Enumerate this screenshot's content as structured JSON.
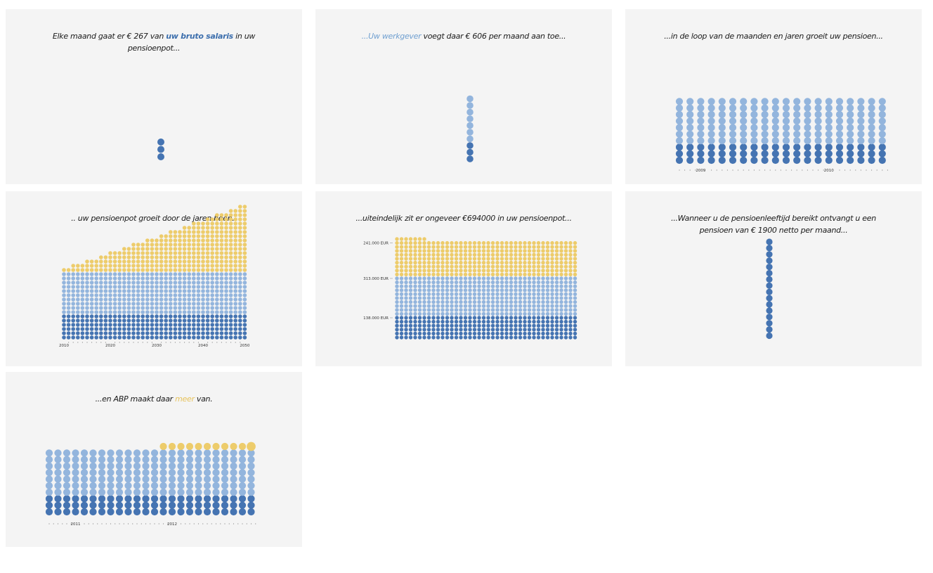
{
  "colors": {
    "employee": "#4574b2",
    "employer": "#93b5dd",
    "returns": "#edcc6b",
    "panel_bg": "#f4f4f4",
    "text": "#1a1a1a"
  },
  "panels": [
    {
      "id": 1,
      "caption_parts": [
        "Elke maand gaat er € 267 van ",
        "uw bruto salaris",
        " in uw pensioenpot..."
      ]
    },
    {
      "id": 2,
      "caption_parts": [
        "...Uw werkgever",
        " voegt daar € 606 per maand aan toe..."
      ]
    },
    {
      "id": 3,
      "caption_parts": [
        "...in de loop van de maanden en jaren groeit uw pensioen..."
      ]
    },
    {
      "id": 4,
      "caption_parts": [
        ".. uw pensioenpot groeit door de jaren heen.."
      ]
    },
    {
      "id": 5,
      "caption_parts": [
        "...uiteindelijk zit er ongeveer €694000 in uw pensioenpot..."
      ]
    },
    {
      "id": 6,
      "caption_parts": [
        "...Wanneer u de pensioenleeftijd bereikt ontvangt u een pensioen van € 1900 netto per maand..."
      ]
    },
    {
      "id": 7,
      "caption_parts": [
        "...en ABP maakt daar ",
        "meer",
        " van."
      ]
    }
  ],
  "chart_data": [
    {
      "type": "scatter",
      "title": "Elke maand gaat er € 267 van uw bruto salaris in uw pensioenpot...",
      "series": [
        {
          "name": "employee",
          "dots": 3
        }
      ]
    },
    {
      "type": "scatter",
      "title": "...Uw werkgever voegt daar € 606 per maand aan toe...",
      "series": [
        {
          "name": "employee",
          "dots": 3
        },
        {
          "name": "employer",
          "dots": 7
        }
      ]
    },
    {
      "type": "scatter",
      "title": "...in de loop van de maanden en jaren groeit uw pensioen...",
      "columns": 20,
      "series": [
        {
          "name": "employee",
          "rows": 3
        },
        {
          "name": "employer",
          "rows": 7
        }
      ],
      "x_labels": [
        {
          "label": "2009",
          "column": 2
        },
        {
          "label": "2010",
          "column": 14
        }
      ]
    },
    {
      "type": "scatter",
      "title": ".. uw pensioenpot groeit door de jaren heen..",
      "columns": 40,
      "series": [
        {
          "name": "employee",
          "rows": 6
        },
        {
          "name": "employer",
          "rows": 10
        },
        {
          "name": "returns",
          "max_rows": 16
        }
      ],
      "x_labels": [
        {
          "label": "2010",
          "column": 0
        },
        {
          "label": "2020",
          "column": 10
        },
        {
          "label": "2030",
          "column": 20
        },
        {
          "label": "2040",
          "column": 30
        },
        {
          "label": "2050",
          "column": 39
        }
      ]
    },
    {
      "type": "scatter",
      "title": "...uiteindelijk zit er ongeveer €694000 in uw pensioenpot...",
      "columns": 40,
      "series": [
        {
          "name": "employee",
          "rows": 6,
          "value_label": "138.000 EUR"
        },
        {
          "name": "employer",
          "rows": 10,
          "value_label": "313.000 EUR"
        },
        {
          "name": "returns",
          "rows": 9,
          "value_label": "241.000 EUR"
        }
      ]
    },
    {
      "type": "scatter",
      "title": "...Wanneer u de pensioenleeftijd bereikt ontvangt u een pensioen van € 1900 netto per maand...",
      "series": [
        {
          "name": "employee",
          "dots": 16
        }
      ]
    },
    {
      "type": "scatter",
      "title": "...en ABP maakt daar meer van.",
      "columns": 24,
      "series": [
        {
          "name": "employee",
          "rows": 3
        },
        {
          "name": "employer",
          "rows": 7
        },
        {
          "name": "returns",
          "rows": 1,
          "from_column": 13
        }
      ],
      "x_labels": [
        {
          "label": "2011",
          "column": 3
        },
        {
          "label": "2012",
          "column": 14
        }
      ]
    }
  ]
}
